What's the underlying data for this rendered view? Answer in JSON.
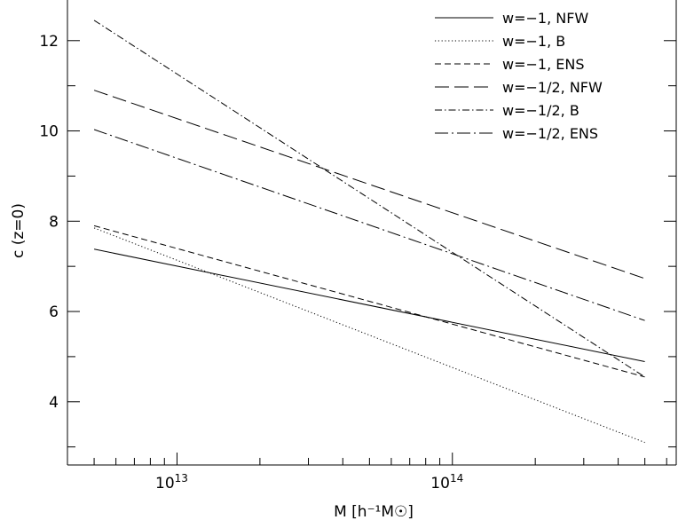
{
  "chart_data": {
    "type": "line",
    "xlabel": "M [h⁻¹M☉]",
    "ylabel": "c (z=0)",
    "xscale": "log",
    "xlim": [
      4000000000000.0,
      650000000000000.0
    ],
    "ylim": [
      2.6,
      12.9
    ],
    "x_ticks": [
      {
        "value": 10000000000000.0,
        "base": "10",
        "exp": "13"
      },
      {
        "value": 100000000000000.0,
        "base": "10",
        "exp": "14"
      }
    ],
    "y_ticks": [
      4,
      6,
      8,
      10,
      12
    ],
    "legend_placement": "top-right",
    "grid": false,
    "series": [
      {
        "name": "w=−1, NFW",
        "dash": "solid",
        "x": [
          5000000000000.0,
          500000000000000.0
        ],
        "y": [
          7.38,
          4.89
        ]
      },
      {
        "name": "w=−1, B",
        "dash": "dotted",
        "x": [
          5000000000000.0,
          500000000000000.0
        ],
        "y": [
          7.85,
          3.1
        ]
      },
      {
        "name": "w=−1, ENS",
        "dash": "short-dash",
        "x": [
          5000000000000.0,
          500000000000000.0
        ],
        "y": [
          7.9,
          4.55
        ]
      },
      {
        "name": "w=−1/2, NFW",
        "dash": "long-dash",
        "x": [
          5000000000000.0,
          500000000000000.0
        ],
        "y": [
          10.9,
          6.73
        ]
      },
      {
        "name": "w=−1/2, B",
        "dash": "dash-dot",
        "x": [
          5000000000000.0,
          500000000000000.0
        ],
        "y": [
          12.45,
          4.55
        ]
      },
      {
        "name": "w=−1/2, ENS",
        "dash": "dash-dot-long",
        "x": [
          5000000000000.0,
          500000000000000.0
        ],
        "y": [
          10.03,
          5.8
        ]
      }
    ]
  }
}
